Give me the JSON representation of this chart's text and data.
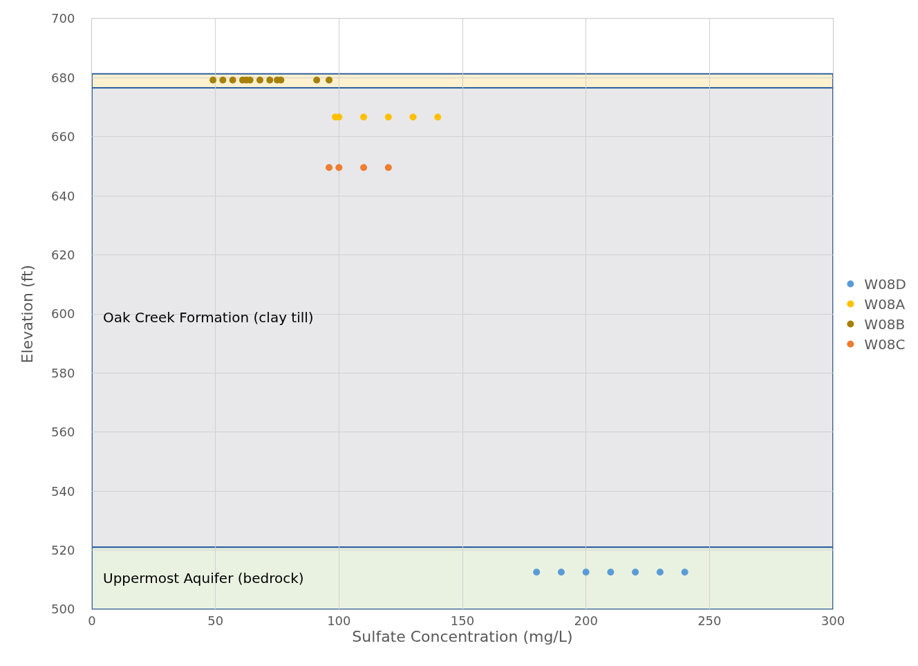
{
  "chart_data": {
    "type": "scatter",
    "xlabel": "Sulfate Concentration (mg/L)",
    "ylabel": "Elevation (ft)",
    "xlim": [
      0,
      300
    ],
    "xticks": [
      0,
      50,
      100,
      150,
      200,
      250,
      300
    ],
    "ylim": [
      500,
      700
    ],
    "yticks": [
      500,
      520,
      540,
      560,
      580,
      600,
      620,
      640,
      660,
      680,
      700
    ],
    "grid": true,
    "legend": "right",
    "marker": "circle",
    "bands": [
      {
        "axis": "y",
        "from": 676.6,
        "to": 681.3,
        "color": "#fdf1cf"
      },
      {
        "axis": "y",
        "from": 521,
        "to": 676.6,
        "color": "#e8e8ea",
        "label": "Oak Creek Formation (clay till)"
      },
      {
        "axis": "y",
        "from": 500,
        "to": 521,
        "color": "#e9f2e1",
        "label": "Uppermost Aquifer (bedrock)"
      }
    ],
    "series": [
      {
        "name": "W08D",
        "color": "#5b9bd5",
        "x": [
          180,
          190,
          200,
          210,
          220,
          230,
          240
        ],
        "values": [
          512.6,
          512.6,
          512.6,
          512.6,
          512.6,
          512.6,
          512.6
        ]
      },
      {
        "name": "W08A",
        "color": "#ffc000",
        "x": [
          98.5,
          100,
          110,
          120,
          130,
          140
        ],
        "values": [
          666.7,
          666.7,
          666.7,
          666.7,
          666.7,
          666.7
        ]
      },
      {
        "name": "W08B",
        "color": "#a5800a",
        "x": [
          49,
          53,
          57,
          61,
          62.5,
          64,
          68,
          72,
          75,
          76.5,
          91,
          96
        ],
        "values": [
          679.2,
          679.2,
          679.2,
          679.2,
          679.2,
          679.2,
          679.2,
          679.2,
          679.2,
          679.2,
          679.2,
          679.2
        ]
      },
      {
        "name": "W08C",
        "color": "#ed7d31",
        "x": [
          96,
          100,
          110,
          120
        ],
        "values": [
          649.6,
          649.6,
          649.6,
          649.6
        ]
      }
    ]
  }
}
